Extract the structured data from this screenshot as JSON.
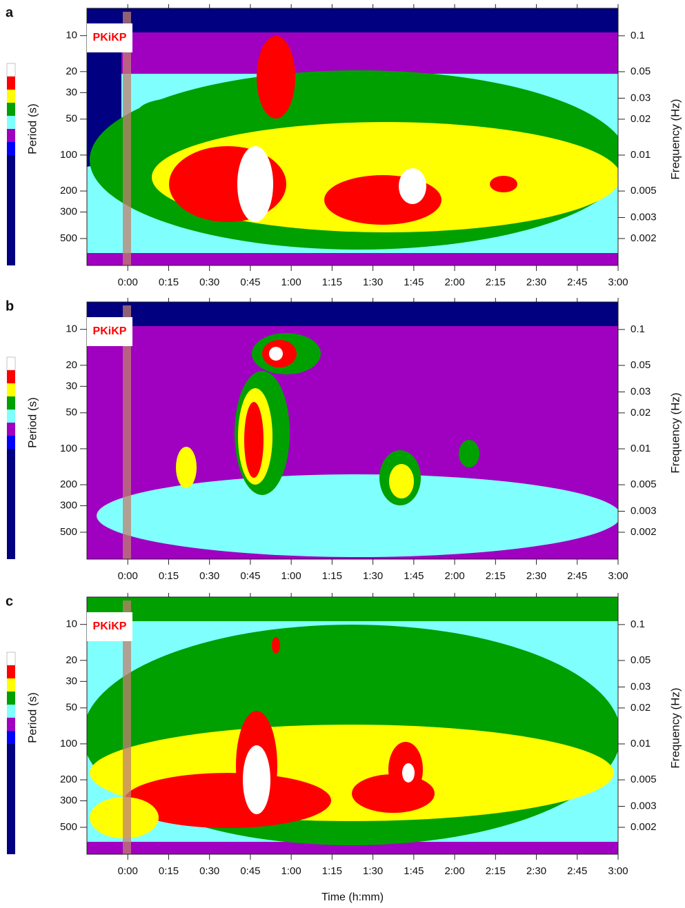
{
  "chart_data": [
    {
      "type": "heatmap",
      "panel": "a",
      "annotation": "PKiKP",
      "ylabel": "Period (s)",
      "y2label": "Frequency (Hz)",
      "xlim": [
        -15,
        180
      ],
      "xticks": [
        {
          "value": 0,
          "label": "0:00"
        },
        {
          "value": 15,
          "label": "0:15"
        },
        {
          "value": 30,
          "label": "0:30"
        },
        {
          "value": 45,
          "label": "0:45"
        },
        {
          "value": 60,
          "label": "1:00"
        },
        {
          "value": 75,
          "label": "1:15"
        },
        {
          "value": 90,
          "label": "1:30"
        },
        {
          "value": 105,
          "label": "1:45"
        },
        {
          "value": 120,
          "label": "2:00"
        },
        {
          "value": 135,
          "label": "2:15"
        },
        {
          "value": 150,
          "label": "2:30"
        },
        {
          "value": 165,
          "label": "2:45"
        },
        {
          "value": 180,
          "label": "3:00"
        }
      ],
      "yscale": "log",
      "ylim": [
        5.9,
        840
      ],
      "yticks": [
        10,
        20,
        30,
        50,
        100,
        200,
        300,
        500
      ],
      "y2lim": [
        0.17,
        0.00119
      ],
      "y2ticks": [
        0.1,
        0.05,
        0.03,
        0.02,
        0.01,
        0.005,
        0.003,
        0.002
      ],
      "colorbar": [
        "#ffffff",
        "#ff0000",
        "#ffff00",
        "#00a000",
        "#80ffff",
        "#a000c0",
        "#0000ff",
        "#000080"
      ]
    },
    {
      "type": "heatmap",
      "panel": "b",
      "annotation": "PKiKP",
      "ylabel": "Period (s)",
      "y2label": "Frequency (Hz)",
      "xlim": [
        -15,
        180
      ],
      "xticks": [
        {
          "value": 0,
          "label": "0:00"
        },
        {
          "value": 15,
          "label": "0:15"
        },
        {
          "value": 30,
          "label": "0:30"
        },
        {
          "value": 45,
          "label": "0:45"
        },
        {
          "value": 60,
          "label": "1:00"
        },
        {
          "value": 75,
          "label": "1:15"
        },
        {
          "value": 90,
          "label": "1:30"
        },
        {
          "value": 105,
          "label": "1:45"
        },
        {
          "value": 120,
          "label": "2:00"
        },
        {
          "value": 135,
          "label": "2:15"
        },
        {
          "value": 150,
          "label": "2:30"
        },
        {
          "value": 165,
          "label": "2:45"
        },
        {
          "value": 180,
          "label": "3:00"
        }
      ],
      "yscale": "log",
      "ylim": [
        5.9,
        840
      ],
      "yticks": [
        10,
        20,
        30,
        50,
        100,
        200,
        300,
        500
      ],
      "y2lim": [
        0.17,
        0.00119
      ],
      "y2ticks": [
        0.1,
        0.05,
        0.03,
        0.02,
        0.01,
        0.005,
        0.003,
        0.002
      ],
      "colorbar": [
        "#ffffff",
        "#ff0000",
        "#ffff00",
        "#00a000",
        "#80ffff",
        "#a000c0",
        "#0000ff",
        "#000080"
      ]
    },
    {
      "type": "heatmap",
      "panel": "c",
      "annotation": "PKiKP",
      "ylabel": "Period (s)",
      "y2label": "Frequency (Hz)",
      "xlabel": "Time (h:mm)",
      "xlim": [
        -15,
        180
      ],
      "xticks": [
        {
          "value": 0,
          "label": "0:00"
        },
        {
          "value": 15,
          "label": "0:15"
        },
        {
          "value": 30,
          "label": "0:30"
        },
        {
          "value": 45,
          "label": "0:45"
        },
        {
          "value": 60,
          "label": "1:00"
        },
        {
          "value": 75,
          "label": "1:15"
        },
        {
          "value": 90,
          "label": "1:30"
        },
        {
          "value": 105,
          "label": "1:45"
        },
        {
          "value": 120,
          "label": "2:00"
        },
        {
          "value": 135,
          "label": "2:15"
        },
        {
          "value": 150,
          "label": "2:30"
        },
        {
          "value": 165,
          "label": "2:45"
        },
        {
          "value": 180,
          "label": "3:00"
        }
      ],
      "yscale": "log",
      "ylim": [
        5.9,
        840
      ],
      "yticks": [
        10,
        20,
        30,
        50,
        100,
        200,
        300,
        500
      ],
      "y2lim": [
        0.17,
        0.00119
      ],
      "y2ticks": [
        0.1,
        0.05,
        0.03,
        0.02,
        0.01,
        0.005,
        0.003,
        0.002
      ],
      "colorbar": [
        "#ffffff",
        "#ff0000",
        "#ffff00",
        "#00a000",
        "#80ffff",
        "#a000c0",
        "#0000ff",
        "#000080"
      ]
    }
  ]
}
